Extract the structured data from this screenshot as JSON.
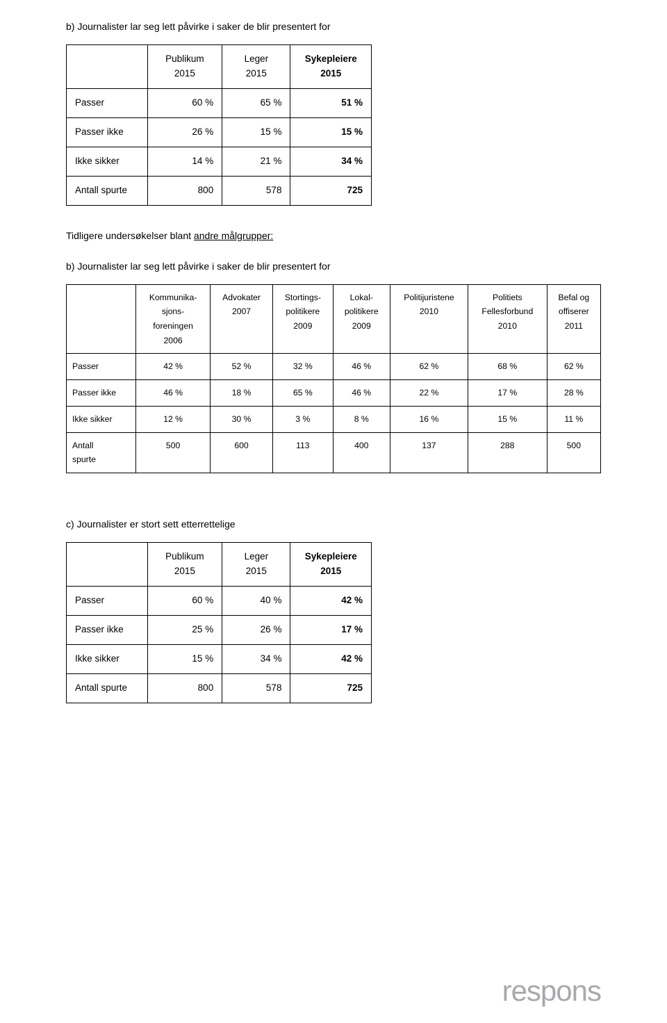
{
  "sectionB": {
    "heading": "b) Journalister lar seg lett påvirke i saker de blir presentert for",
    "smallTable": {
      "headers": [
        "Publikum\n2015",
        "Leger\n2015",
        "Sykepleiere\n2015"
      ],
      "headerBold": [
        false,
        false,
        true
      ],
      "rows": [
        {
          "label": "Passer",
          "cells": [
            "60 %",
            "65 %",
            "51 %"
          ],
          "boldLast": true
        },
        {
          "label": "Passer ikke",
          "cells": [
            "26 %",
            "15 %",
            "15 %"
          ],
          "boldLast": true
        },
        {
          "label": "Ikke sikker",
          "cells": [
            "14 %",
            "21 %",
            "34 %"
          ],
          "boldLast": true
        },
        {
          "label": "Antall spurte",
          "cells": [
            "800",
            "578",
            "725"
          ],
          "boldLast": true
        }
      ]
    },
    "bridgePlain": "Tidligere undersøkelser blant ",
    "bridgeUnderline": "andre målgrupper:",
    "repeatHeading": "b) Journalister lar seg lett påvirke i saker de blir presentert for",
    "bigTable": {
      "headers": [
        "Kommunika-\nsjons-\nforeningen\n2006",
        "Advokater\n2007",
        "Stortings-\npolitikere\n2009",
        "Lokal-\npolitikere\n2009",
        "Politijuristene\n2010",
        "Politiets\nFellesforbund\n2010",
        "Befal og\noffiserer\n2011"
      ],
      "rows": [
        {
          "label": "Passer",
          "cells": [
            "42 %",
            "52 %",
            "32 %",
            "46 %",
            "62 %",
            "68 %",
            "62 %"
          ]
        },
        {
          "label": "Passer ikke",
          "cells": [
            "46 %",
            "18 %",
            "65 %",
            "46 %",
            "22 %",
            "17 %",
            "28 %"
          ]
        },
        {
          "label": "Ikke sikker",
          "cells": [
            "12 %",
            "30 %",
            "3 %",
            "8 %",
            "16 %",
            "15 %",
            "11 %"
          ]
        },
        {
          "label": "Antall\nspurte",
          "cells": [
            "500",
            "600",
            "113",
            "400",
            "137",
            "288",
            "500"
          ]
        }
      ]
    }
  },
  "sectionC": {
    "heading": "c) Journalister er stort sett etterrettelige",
    "smallTable": {
      "headers": [
        "Publikum\n2015",
        "Leger\n2015",
        "Sykepleiere\n2015"
      ],
      "headerBold": [
        false,
        false,
        true
      ],
      "rows": [
        {
          "label": "Passer",
          "cells": [
            "60 %",
            "40 %",
            "42 %"
          ],
          "boldLast": true
        },
        {
          "label": "Passer ikke",
          "cells": [
            "25 %",
            "26 %",
            "17 %"
          ],
          "boldLast": true
        },
        {
          "label": "Ikke sikker",
          "cells": [
            "15 %",
            "34 %",
            "42 %"
          ],
          "boldLast": true
        },
        {
          "label": "Antall spurte",
          "cells": [
            "800",
            "578",
            "725"
          ],
          "boldLast": true
        }
      ]
    }
  },
  "logo": "respons"
}
